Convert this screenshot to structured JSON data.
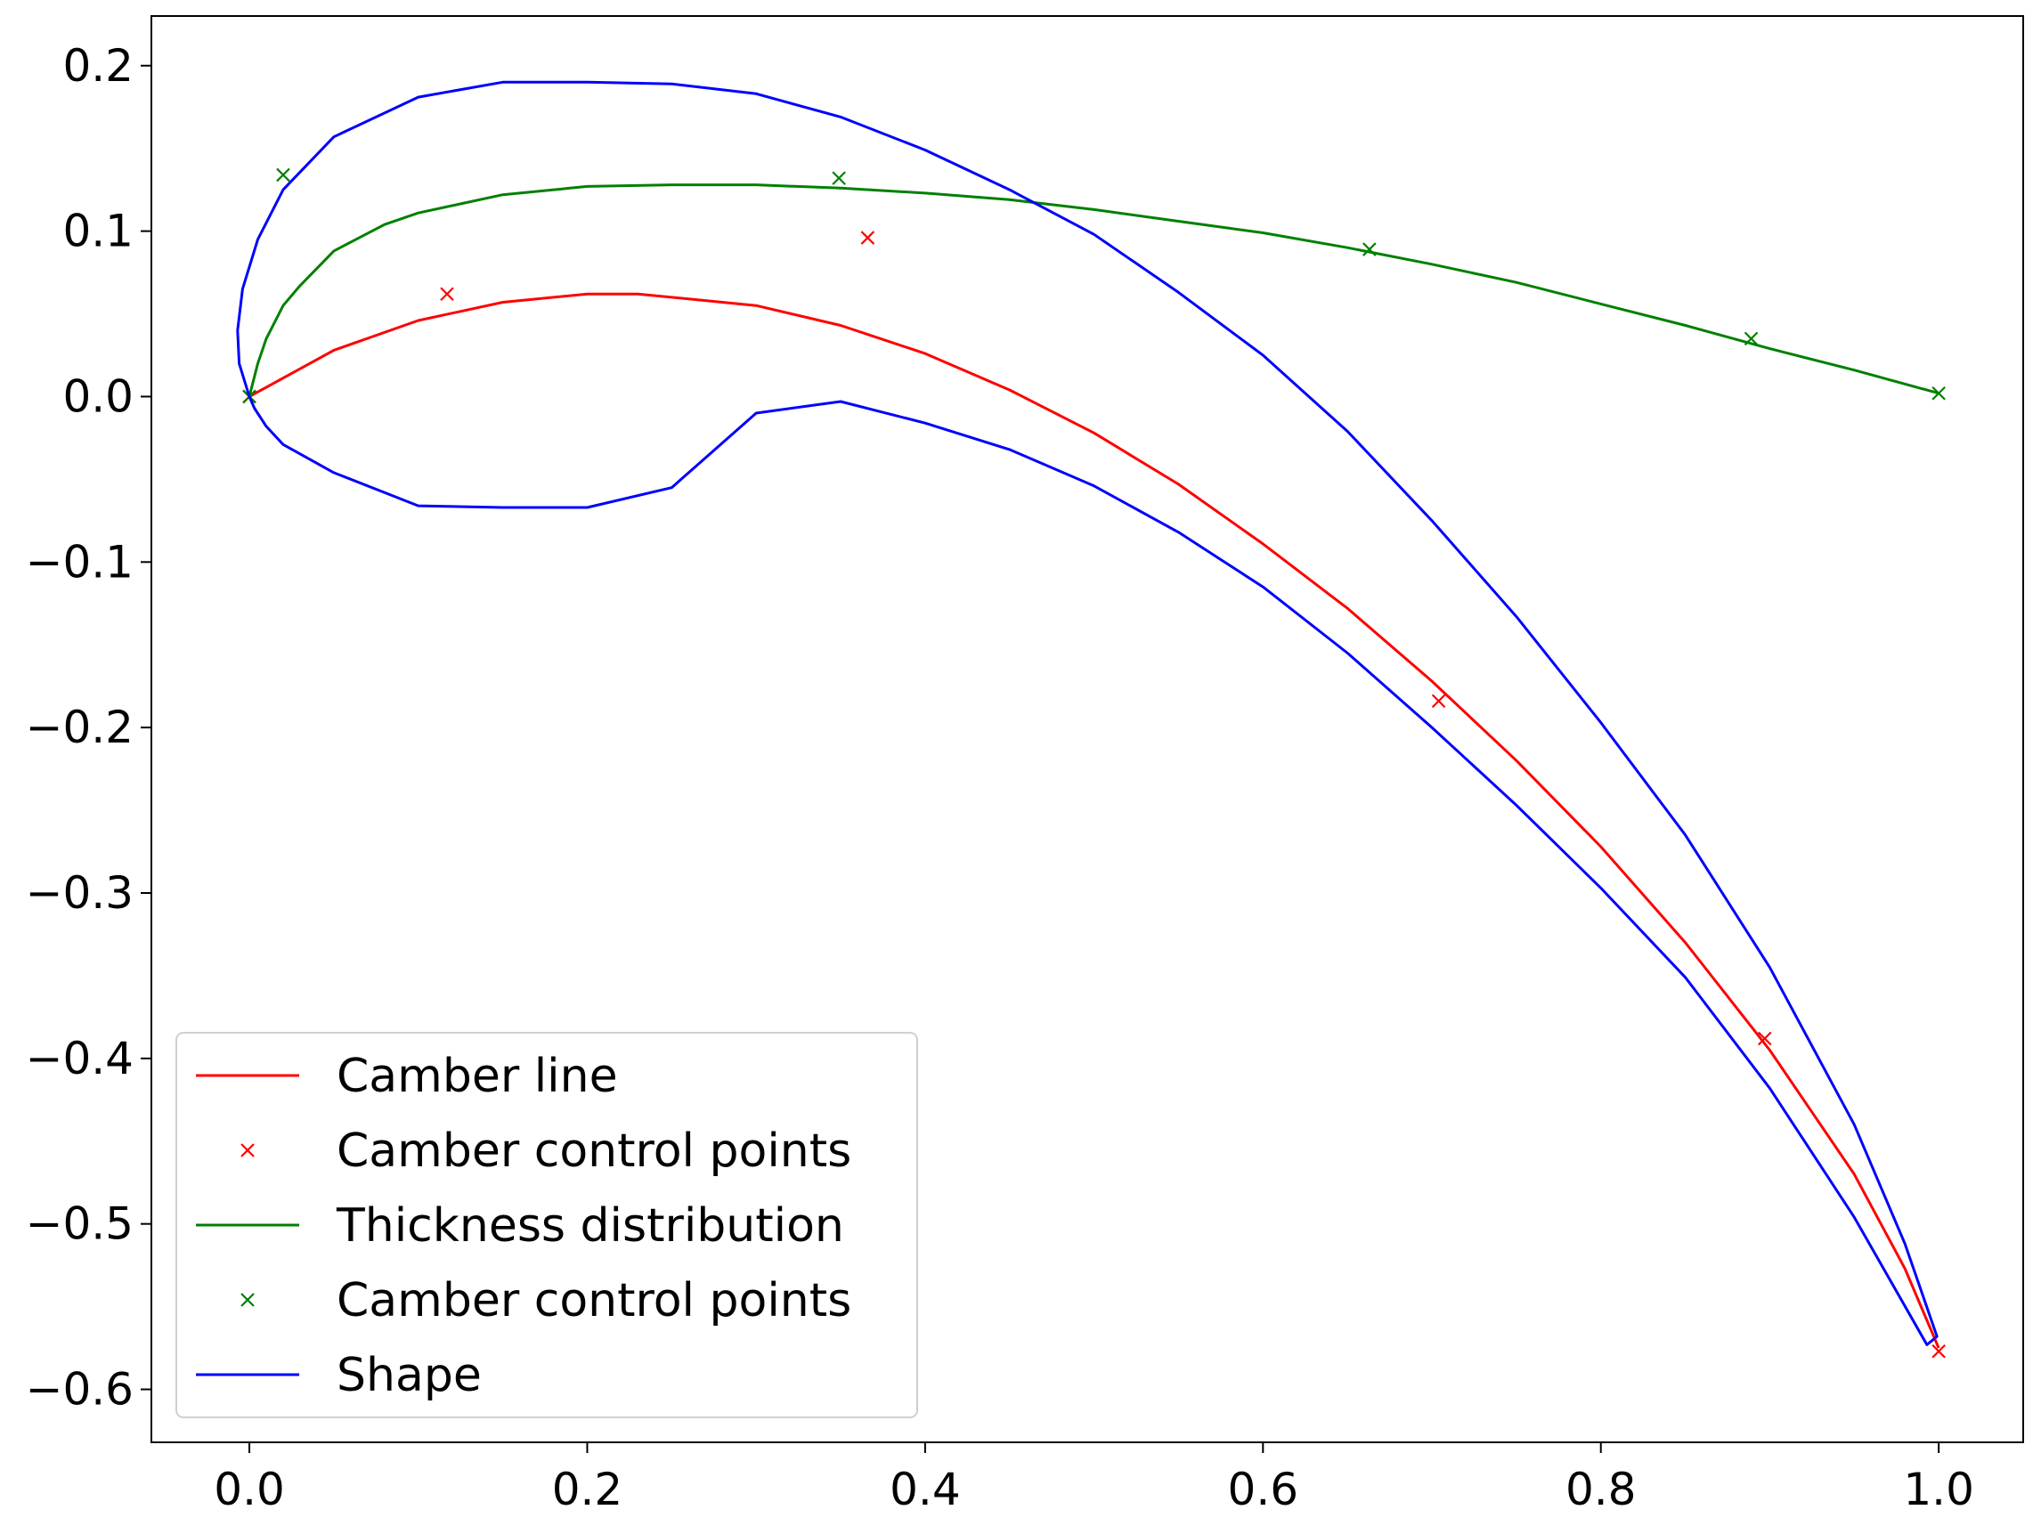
{
  "chart_data": {
    "type": "line",
    "title": "",
    "xlabel": "",
    "ylabel": "",
    "xlim": [
      -0.058,
      1.05
    ],
    "ylim": [
      -0.632,
      0.23
    ],
    "grid": false,
    "legend_position": "lower-left",
    "x_ticks": [
      0.0,
      0.2,
      0.4,
      0.6,
      0.8,
      1.0
    ],
    "x_tick_labels": [
      "0.0",
      "0.2",
      "0.4",
      "0.6",
      "0.8",
      "1.0"
    ],
    "y_ticks": [
      0.2,
      0.1,
      0.0,
      -0.1,
      -0.2,
      -0.3,
      -0.4,
      -0.5,
      -0.6
    ],
    "y_tick_labels": [
      "0.2",
      "0.1",
      "0.0",
      "−0.1",
      "−0.2",
      "−0.3",
      "−0.4",
      "−0.5",
      "−0.6"
    ],
    "series": [
      {
        "name": "Camber line",
        "kind": "line",
        "color": "#ff0000",
        "x": [
          0.0,
          0.05,
          0.1,
          0.15,
          0.2,
          0.23,
          0.3,
          0.35,
          0.4,
          0.45,
          0.5,
          0.55,
          0.6,
          0.65,
          0.7,
          0.75,
          0.8,
          0.85,
          0.9,
          0.95,
          0.98,
          1.0
        ],
        "y": [
          0.0,
          0.028,
          0.046,
          0.057,
          0.062,
          0.062,
          0.055,
          0.043,
          0.026,
          0.004,
          -0.022,
          -0.053,
          -0.089,
          -0.128,
          -0.172,
          -0.22,
          -0.272,
          -0.33,
          -0.395,
          -0.47,
          -0.527,
          -0.575
        ]
      },
      {
        "name": "Camber control points",
        "kind": "markers",
        "color": "#ff0000",
        "x": [
          0.0,
          0.117,
          0.366,
          0.704,
          0.897,
          1.0
        ],
        "y": [
          0.0,
          0.062,
          0.096,
          -0.184,
          -0.388,
          -0.577
        ]
      },
      {
        "name": "Thickness distribution",
        "kind": "line",
        "color": "#008000",
        "x": [
          0.0,
          0.005,
          0.01,
          0.02,
          0.03,
          0.05,
          0.08,
          0.1,
          0.15,
          0.2,
          0.25,
          0.3,
          0.35,
          0.4,
          0.45,
          0.5,
          0.55,
          0.6,
          0.65,
          0.7,
          0.75,
          0.8,
          0.85,
          0.9,
          0.95,
          1.0
        ],
        "y": [
          0.0,
          0.02,
          0.035,
          0.055,
          0.067,
          0.088,
          0.104,
          0.111,
          0.122,
          0.127,
          0.128,
          0.128,
          0.126,
          0.123,
          0.119,
          0.113,
          0.106,
          0.099,
          0.09,
          0.08,
          0.069,
          0.056,
          0.043,
          0.029,
          0.016,
          0.002
        ]
      },
      {
        "name": "Camber control points",
        "kind": "markers",
        "color": "#008000",
        "x": [
          0.0,
          0.02,
          0.349,
          0.663,
          0.889,
          1.0
        ],
        "y": [
          0.0,
          0.134,
          0.132,
          0.089,
          0.035,
          0.002
        ]
      },
      {
        "name": "Shape",
        "kind": "line",
        "color": "#0000ff",
        "x": [
          0.0,
          -0.006,
          -0.007,
          -0.004,
          0.005,
          0.02,
          0.05,
          0.1,
          0.15,
          0.2,
          0.25,
          0.3,
          0.35,
          0.4,
          0.45,
          0.5,
          0.55,
          0.6,
          0.65,
          0.7,
          0.75,
          0.8,
          0.85,
          0.9,
          0.95,
          0.98,
          0.999,
          0.993,
          0.95,
          0.9,
          0.85,
          0.8,
          0.75,
          0.7,
          0.65,
          0.6,
          0.55,
          0.5,
          0.45,
          0.4,
          0.35,
          0.3,
          0.25,
          0.2,
          0.15,
          0.1,
          0.05,
          0.02,
          0.01,
          0.003,
          0.0
        ],
        "y": [
          0.0,
          0.02,
          0.04,
          0.065,
          0.095,
          0.125,
          0.157,
          0.181,
          0.19,
          0.19,
          0.189,
          0.183,
          0.169,
          0.149,
          0.125,
          0.098,
          0.063,
          0.025,
          -0.021,
          -0.075,
          -0.133,
          -0.197,
          -0.265,
          -0.345,
          -0.44,
          -0.512,
          -0.568,
          -0.573,
          -0.496,
          -0.418,
          -0.351,
          -0.297,
          -0.247,
          -0.2,
          -0.155,
          -0.115,
          -0.082,
          -0.054,
          -0.032,
          -0.016,
          -0.003,
          -0.01,
          -0.055,
          -0.067,
          -0.067,
          -0.066,
          -0.046,
          -0.029,
          -0.018,
          -0.007,
          0.0
        ]
      }
    ]
  }
}
